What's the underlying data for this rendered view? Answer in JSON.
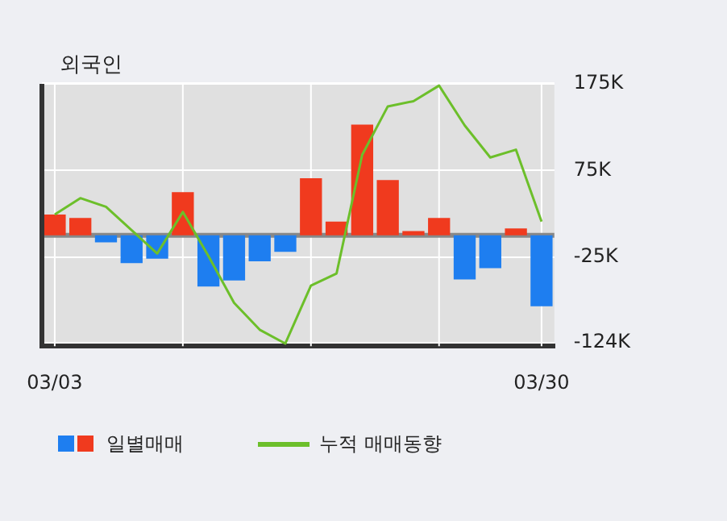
{
  "chart_data": {
    "type": "bar",
    "title": "외국인",
    "categories": [
      "03/03",
      null,
      null,
      null,
      null,
      null,
      null,
      null,
      null,
      null,
      null,
      null,
      null,
      null,
      null,
      null,
      null,
      null,
      null,
      "03/30"
    ],
    "series": [
      {
        "name": "일별매매",
        "colors": [
          "#f03a1e",
          "#f03a1e",
          "#1e7ef0",
          "#1e7ef0",
          "#1e7ef0",
          "#f03a1e",
          "#1e7ef0",
          "#1e7ef0",
          "#1e7ef0",
          "#1e7ef0",
          "#f03a1e",
          "#f03a1e",
          "#f03a1e",
          "#f03a1e",
          "#f03a1e",
          "#f03a1e",
          "#1e7ef0",
          "#1e7ef0",
          "#f03a1e",
          "#1e7ef0"
        ],
        "values": [
          24000,
          20000,
          -8000,
          -32000,
          -27000,
          50000,
          -59000,
          -52000,
          -30000,
          -19000,
          66000,
          16000,
          128000,
          64000,
          5000,
          20000,
          -51000,
          -38000,
          8000,
          -82000
        ]
      },
      {
        "type": "line",
        "name": "누적 매매동향",
        "color": "#6cbf2a",
        "values": [
          24000,
          43000,
          33000,
          6000,
          -21000,
          27000,
          -24000,
          -78000,
          -109000,
          -125000,
          -58000,
          -44000,
          93000,
          149000,
          155000,
          173000,
          127000,
          90000,
          99000,
          16000
        ]
      }
    ],
    "ylim": [
      -128000,
      175000
    ],
    "yticks": [
      {
        "value": 175000,
        "label": "175K"
      },
      {
        "value": 75000,
        "label": "75K"
      },
      {
        "value": -25000,
        "label": "-25K"
      },
      {
        "value": -124000,
        "label": "-124K"
      }
    ],
    "ref_lines": [
      {
        "axis": "y",
        "value": 0,
        "color": "#888888"
      }
    ],
    "grid": true,
    "legend": "bottom",
    "marker": "none",
    "line_style": "solid"
  }
}
